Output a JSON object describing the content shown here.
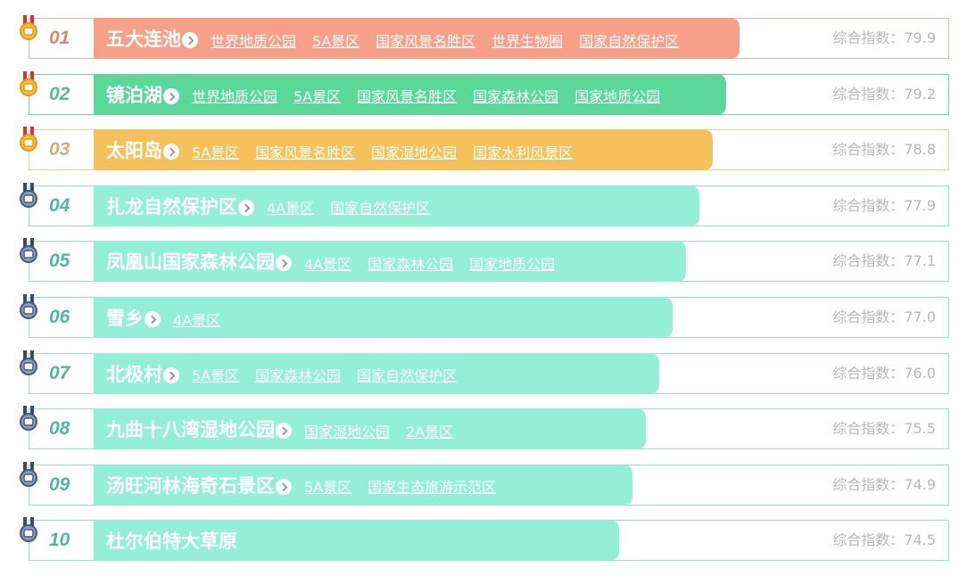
{
  "score_label": "综合指数：",
  "items": [
    {
      "rank": "01",
      "name": "五大连池",
      "tags": [
        "世界地质公园",
        "5A景区",
        "国家风景名胜区",
        "世界生物圈",
        "国家自然保护区"
      ],
      "score": "79.9"
    },
    {
      "rank": "02",
      "name": "镜泊湖",
      "tags": [
        "世界地质公园",
        "5A景区",
        "国家风景名胜区",
        "国家森林公园",
        "国家地质公园"
      ],
      "score": "79.2"
    },
    {
      "rank": "03",
      "name": "太阳岛",
      "tags": [
        "5A景区",
        "国家风景名胜区",
        "国家湿地公园",
        "国家水利风景区"
      ],
      "score": "78.8"
    },
    {
      "rank": "04",
      "name": "扎龙自然保护区",
      "tags": [
        "4A景区",
        "国家自然保护区"
      ],
      "score": "77.9"
    },
    {
      "rank": "05",
      "name": "凤凰山国家森林公园",
      "tags": [
        "4A景区",
        "国家森林公园",
        "国家地质公园"
      ],
      "score": "77.1"
    },
    {
      "rank": "06",
      "name": "雪乡",
      "tags": [
        "4A景区"
      ],
      "score": "77.0"
    },
    {
      "rank": "07",
      "name": "北极村",
      "tags": [
        "5A景区",
        "国家森林公园",
        "国家自然保护区"
      ],
      "score": "76.0"
    },
    {
      "rank": "08",
      "name": "九曲十八湾湿地公园",
      "tags": [
        "国家湿地公园",
        "2A景区"
      ],
      "score": "75.5"
    },
    {
      "rank": "09",
      "name": "汤旺河林海奇石景区",
      "tags": [
        "5A景区",
        "国家生态旅游示范区"
      ],
      "score": "74.9"
    },
    {
      "rank": "10",
      "name": "杜尔伯特大草原",
      "tags": [],
      "score": "74.5"
    }
  ]
}
